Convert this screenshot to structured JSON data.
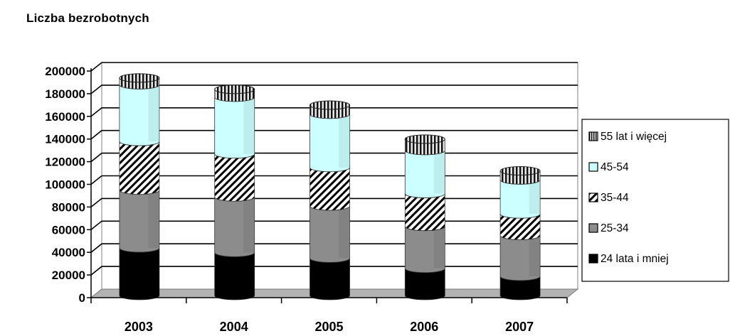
{
  "chart_data": {
    "type": "bar",
    "stacked": true,
    "title": "Liczba bezrobotnych",
    "xlabel": "",
    "ylabel": "",
    "categories": [
      "2003",
      "2004",
      "2005",
      "2006",
      "2007"
    ],
    "ylim": [
      0,
      200000
    ],
    "yticks": [
      "0",
      "20000",
      "40000",
      "60000",
      "80000",
      "100000",
      "120000",
      "140000",
      "160000",
      "180000",
      "200000"
    ],
    "grid": true,
    "legend_position": "right",
    "series": [
      {
        "name": "24 lata i mniej",
        "values": [
          42000,
          38000,
          33000,
          24000,
          17000
        ],
        "color": "#000000",
        "pattern": "solid"
      },
      {
        "name": "25-34",
        "values": [
          51000,
          49000,
          46000,
          37000,
          36000
        ],
        "color": "#8c8c8c",
        "pattern": "solid"
      },
      {
        "name": "35-44",
        "values": [
          43000,
          38000,
          34000,
          29000,
          19000
        ],
        "color": "#ffffff",
        "pattern": "hatch"
      },
      {
        "name": "45-54",
        "values": [
          50000,
          50000,
          47000,
          38000,
          30000
        ],
        "color": "#ccffff",
        "pattern": "solid"
      },
      {
        "name": "55 lat i więcej",
        "values": [
          6000,
          7000,
          8000,
          10000,
          8000
        ],
        "color": "#666666",
        "pattern": "stripes"
      }
    ]
  }
}
